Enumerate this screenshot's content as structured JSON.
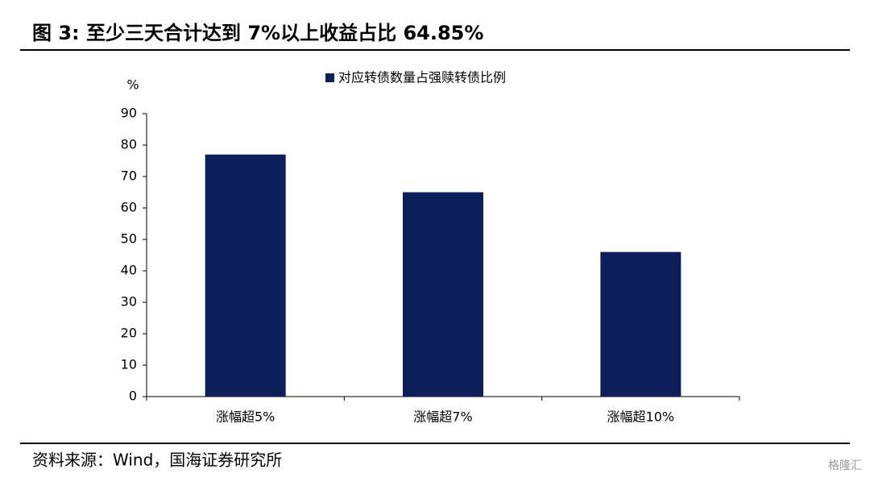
{
  "chart_data": {
    "type": "bar",
    "title": "图 3:  至少三天合计达到 7%以上收益占比 64.85%",
    "y_unit": "%",
    "categories": [
      "涨幅超5%",
      "涨幅超7%",
      "涨幅超10%"
    ],
    "series": [
      {
        "name": "对应转债数量占强赎转债比例",
        "color": "#0c1f5b",
        "values": [
          77,
          65,
          46
        ]
      }
    ],
    "ylim": [
      0,
      90
    ],
    "yticks": [
      0,
      10,
      20,
      30,
      40,
      50,
      60,
      70,
      80,
      90
    ],
    "source": "资料来源：Wind，国海证券研究所",
    "watermark": "格隆汇"
  }
}
